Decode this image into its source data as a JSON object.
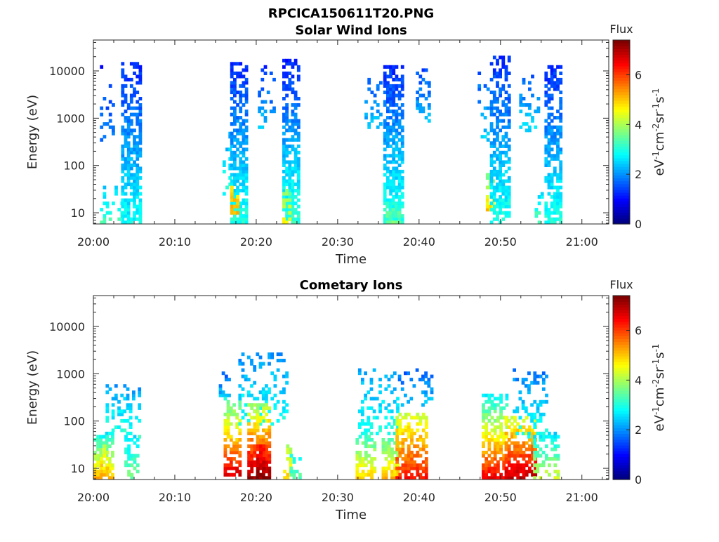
{
  "figure_title": "RPCICA150611T20.PNG",
  "chart_data": [
    {
      "type": "heatmap",
      "title": "Solar Wind Ions",
      "xlabel": "Time",
      "ylabel": "Energy (eV)",
      "x_ticks": [
        "20:00",
        "20:10",
        "20:20",
        "20:30",
        "20:40",
        "20:50",
        "21:00"
      ],
      "x_range_minutes": [
        0,
        63.3
      ],
      "y_scale": "log",
      "y_ticks": [
        10,
        100,
        1000,
        10000
      ],
      "y_range": [
        5.8,
        45000
      ],
      "colorbar": {
        "title": "Flux",
        "label": "eV-1cm-2sr-1s-1",
        "ticks": [
          0,
          2,
          4,
          6
        ],
        "range": [
          0,
          7.4
        ],
        "colormap": "jet"
      },
      "clusters": [
        {
          "t0": 0.8,
          "t1": 2.4,
          "e_lo": 300,
          "e_hi": 15000,
          "f_lo": 1.1,
          "f_hi": 1.9,
          "density": 0.28
        },
        {
          "t0": 0.8,
          "t1": 3.7,
          "e_lo": 6,
          "e_hi": 40,
          "f_lo": 2.3,
          "f_hi": 3.4,
          "density": 0.22
        },
        {
          "t0": 3.4,
          "t1": 5.9,
          "e_lo": 6,
          "e_hi": 16000,
          "f_lo": 1.2,
          "f_hi": 2.8,
          "density": 0.75
        },
        {
          "t0": 15.5,
          "t1": 16.8,
          "e_lo": 20,
          "e_hi": 500,
          "f_lo": 2.2,
          "f_hi": 3.0,
          "density": 0.2
        },
        {
          "t0": 16.8,
          "t1": 18.7,
          "e_lo": 6,
          "e_hi": 15000,
          "f_lo": 1.2,
          "f_hi": 3.0,
          "density": 0.78
        },
        {
          "t0": 16.8,
          "t1": 17.6,
          "e_lo": 9,
          "e_hi": 35,
          "f_lo": 4.6,
          "f_hi": 5.3,
          "density": 0.7
        },
        {
          "t0": 20.2,
          "t1": 22.3,
          "e_lo": 500,
          "e_hi": 13000,
          "f_lo": 1.2,
          "f_hi": 2.4,
          "density": 0.28
        },
        {
          "t0": 23.2,
          "t1": 25.0,
          "e_lo": 6,
          "e_hi": 17000,
          "f_lo": 1.1,
          "f_hi": 3.2,
          "density": 0.75
        },
        {
          "t0": 23.2,
          "t1": 24.1,
          "e_lo": 6,
          "e_hi": 30,
          "f_lo": 3.6,
          "f_hi": 4.8,
          "density": 0.55
        },
        {
          "t0": 33.3,
          "t1": 35.4,
          "e_lo": 600,
          "e_hi": 9000,
          "f_lo": 1.5,
          "f_hi": 2.4,
          "density": 0.3
        },
        {
          "t0": 35.6,
          "t1": 37.9,
          "e_lo": 6,
          "e_hi": 14000,
          "f_lo": 1.2,
          "f_hi": 3.1,
          "density": 0.8
        },
        {
          "t0": 35.9,
          "t1": 37.4,
          "e_lo": 6,
          "e_hi": 20,
          "f_lo": 2.9,
          "f_hi": 3.6,
          "density": 0.75
        },
        {
          "t0": 39.6,
          "t1": 41.4,
          "e_lo": 700,
          "e_hi": 12000,
          "f_lo": 1.4,
          "f_hi": 2.4,
          "density": 0.32
        },
        {
          "t0": 47.2,
          "t1": 48.3,
          "e_lo": 300,
          "e_hi": 10000,
          "f_lo": 1.6,
          "f_hi": 2.5,
          "density": 0.2
        },
        {
          "t0": 48.2,
          "t1": 49.2,
          "e_lo": 10,
          "e_hi": 80,
          "f_lo": 3.4,
          "f_hi": 5.1,
          "density": 0.55
        },
        {
          "t0": 48.7,
          "t1": 50.9,
          "e_lo": 6,
          "e_hi": 20000,
          "f_lo": 1.2,
          "f_hi": 3.0,
          "density": 0.72
        },
        {
          "t0": 52.3,
          "t1": 54.6,
          "e_lo": 500,
          "e_hi": 10000,
          "f_lo": 1.5,
          "f_hi": 2.6,
          "density": 0.3
        },
        {
          "t0": 54.2,
          "t1": 55.2,
          "e_lo": 6,
          "e_hi": 30,
          "f_lo": 2.5,
          "f_hi": 3.4,
          "density": 0.45
        },
        {
          "t0": 55.4,
          "t1": 57.2,
          "e_lo": 6,
          "e_hi": 13000,
          "f_lo": 1.2,
          "f_hi": 3.0,
          "density": 0.75
        }
      ]
    },
    {
      "type": "heatmap",
      "title": "Cometary Ions",
      "xlabel": "Time",
      "ylabel": "Energy (eV)",
      "x_ticks": [
        "20:00",
        "20:10",
        "20:20",
        "20:30",
        "20:40",
        "20:50",
        "21:00"
      ],
      "x_range_minutes": [
        0,
        63.3
      ],
      "y_scale": "log",
      "y_ticks": [
        10,
        100,
        1000,
        10000
      ],
      "y_range": [
        5.8,
        45000
      ],
      "colorbar": {
        "title": "Flux",
        "label": "eV-1cm-2sr-1s-1",
        "ticks": [
          0,
          2,
          4,
          6
        ],
        "range": [
          0,
          7.4
        ],
        "colormap": "jet"
      },
      "clusters": [
        {
          "t0": 0.0,
          "t1": 2.2,
          "e_lo": 6,
          "e_hi": 60,
          "f_lo": 2.6,
          "f_hi": 5.3,
          "density": 0.75
        },
        {
          "t0": 0.8,
          "t1": 1.8,
          "e_lo": 7,
          "e_hi": 30,
          "f_lo": 4.2,
          "f_hi": 5.2,
          "density": 0.6
        },
        {
          "t0": 1.5,
          "t1": 5.6,
          "e_lo": 40,
          "e_hi": 600,
          "f_lo": 2.0,
          "f_hi": 3.2,
          "density": 0.32
        },
        {
          "t0": 3.8,
          "t1": 5.6,
          "e_lo": 6,
          "e_hi": 50,
          "f_lo": 2.6,
          "f_hi": 3.6,
          "density": 0.5
        },
        {
          "t0": 15.4,
          "t1": 16.6,
          "e_lo": 300,
          "e_hi": 1100,
          "f_lo": 1.6,
          "f_hi": 2.4,
          "density": 0.55
        },
        {
          "t0": 16.0,
          "t1": 18.0,
          "e_lo": 7,
          "e_hi": 300,
          "f_lo": 3.2,
          "f_hi": 6.8,
          "density": 0.75
        },
        {
          "t0": 17.8,
          "t1": 23.6,
          "e_lo": 80,
          "e_hi": 3000,
          "f_lo": 1.9,
          "f_hi": 3.0,
          "density": 0.3
        },
        {
          "t0": 18.9,
          "t1": 21.7,
          "e_lo": 6,
          "e_hi": 250,
          "f_lo": 3.8,
          "f_hi": 7.3,
          "density": 0.82
        },
        {
          "t0": 20.0,
          "t1": 21.0,
          "e_lo": 6,
          "e_hi": 30,
          "f_lo": 6.4,
          "f_hi": 7.3,
          "density": 0.9
        },
        {
          "t0": 23.3,
          "t1": 24.1,
          "e_lo": 6,
          "e_hi": 30,
          "f_lo": 4.0,
          "f_hi": 5.0,
          "density": 0.6
        },
        {
          "t0": 24.1,
          "t1": 25.3,
          "e_lo": 6,
          "e_hi": 20,
          "f_lo": 2.8,
          "f_hi": 3.5,
          "density": 0.4
        },
        {
          "t0": 32.2,
          "t1": 34.6,
          "e_lo": 6,
          "e_hi": 60,
          "f_lo": 3.0,
          "f_hi": 5.0,
          "density": 0.75
        },
        {
          "t0": 32.5,
          "t1": 37.4,
          "e_lo": 50,
          "e_hi": 1500,
          "f_lo": 2.0,
          "f_hi": 3.0,
          "density": 0.25
        },
        {
          "t0": 35.4,
          "t1": 37.3,
          "e_lo": 6,
          "e_hi": 45,
          "f_lo": 3.3,
          "f_hi": 5.2,
          "density": 0.75
        },
        {
          "t0": 37.1,
          "t1": 40.9,
          "e_lo": 6,
          "e_hi": 150,
          "f_lo": 4.2,
          "f_hi": 6.4,
          "density": 0.75
        },
        {
          "t0": 37.4,
          "t1": 41.4,
          "e_lo": 200,
          "e_hi": 1200,
          "f_lo": 1.6,
          "f_hi": 2.4,
          "density": 0.25
        },
        {
          "t0": 47.7,
          "t1": 50.6,
          "e_lo": 6,
          "e_hi": 400,
          "f_lo": 2.6,
          "f_hi": 6.6,
          "density": 0.75
        },
        {
          "t0": 50.5,
          "t1": 54.1,
          "e_lo": 6,
          "e_hi": 120,
          "f_lo": 4.3,
          "f_hi": 7.0,
          "density": 0.82
        },
        {
          "t0": 51.5,
          "t1": 55.6,
          "e_lo": 40,
          "e_hi": 1200,
          "f_lo": 1.8,
          "f_hi": 3.0,
          "density": 0.28
        },
        {
          "t0": 54.0,
          "t1": 57.1,
          "e_lo": 6,
          "e_hi": 60,
          "f_lo": 2.5,
          "f_hi": 4.3,
          "density": 0.55
        }
      ]
    }
  ]
}
